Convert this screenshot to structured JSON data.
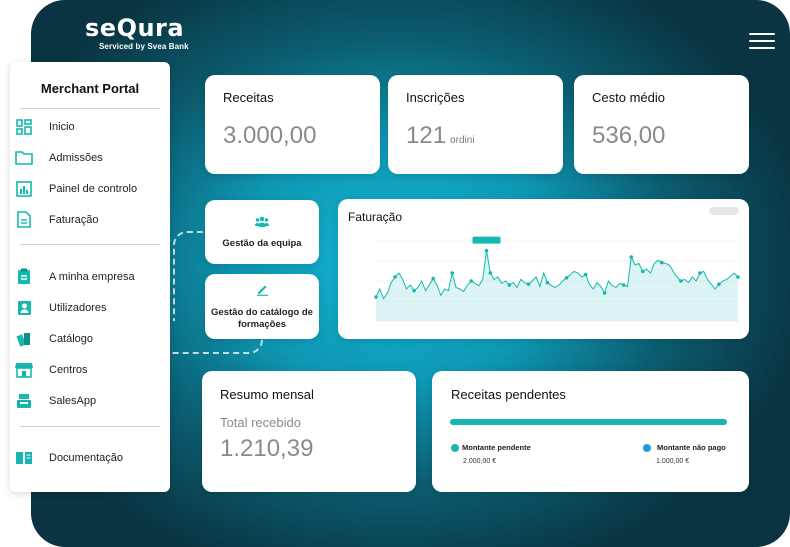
{
  "brand": {
    "name": "seQura",
    "tagline": "Serviced by Svea Bank"
  },
  "sidebar": {
    "title": "Merchant Portal",
    "items": [
      {
        "label": "Inicio",
        "icon": "dashboard-icon"
      },
      {
        "label": "Admissões",
        "icon": "folder-icon"
      },
      {
        "label": "Painel de controlo",
        "icon": "bar-chart-icon"
      },
      {
        "label": "Faturação",
        "icon": "document-icon"
      },
      {
        "label": "A minha empresa",
        "icon": "clipboard-icon"
      },
      {
        "label": "Utilizadores",
        "icon": "user-badge-icon"
      },
      {
        "label": "Catálogo",
        "icon": "books-icon"
      },
      {
        "label": "Centros",
        "icon": "store-icon"
      },
      {
        "label": "SalesApp",
        "icon": "cash-register-icon"
      },
      {
        "label": "Documentação",
        "icon": "book-open-icon"
      }
    ]
  },
  "stats": {
    "receitas": {
      "label": "Receitas",
      "value": "3.000,00"
    },
    "inscricoes": {
      "label": "Inscrições",
      "value": "121",
      "unit": "ordini"
    },
    "cesto": {
      "label": "Cesto médio",
      "value": "536,00"
    }
  },
  "actions": {
    "equipa": "Gestão da equipa",
    "catalogo": "Gestão do catálogo de formações"
  },
  "colors": {
    "accent": "#16b7b0",
    "blue": "#1e9bd7",
    "frame": "#0e97b3"
  },
  "chart_data": {
    "type": "area",
    "title": "Faturação",
    "y": [
      30,
      40,
      28,
      35,
      48,
      55,
      60,
      52,
      40,
      45,
      38,
      42,
      50,
      38,
      45,
      53,
      45,
      32,
      40,
      38,
      60,
      42,
      40,
      37,
      45,
      50,
      47,
      44,
      52,
      88,
      60,
      52,
      55,
      47,
      50,
      45,
      48,
      42,
      52,
      48,
      46,
      50,
      55,
      43,
      60,
      48,
      44,
      42,
      45,
      50,
      54,
      58,
      62,
      60,
      55,
      58,
      46,
      40,
      48,
      43,
      35,
      50,
      44,
      42,
      47,
      45,
      43,
      80,
      70,
      72,
      62,
      65,
      60,
      72,
      76,
      73,
      72,
      70,
      62,
      55,
      50,
      52,
      48,
      55,
      50,
      60,
      62,
      52,
      46,
      40,
      46,
      50,
      52,
      56,
      60,
      55
    ],
    "ylim": [
      0,
      100
    ],
    "tooltip": "",
    "color": "#16b7b0"
  },
  "resumo": {
    "label": "Resumo mensal",
    "sub": "Total recebido",
    "value": "1.210,39"
  },
  "pendentes": {
    "label": "Receitas pendentes",
    "legend": [
      {
        "label": "Montante pendente",
        "value": "2.000,00 €",
        "color": "#16b7b0"
      },
      {
        "label": "Montante não pago",
        "value": "1.000,00 €",
        "color": "#1e9bd7"
      }
    ]
  }
}
